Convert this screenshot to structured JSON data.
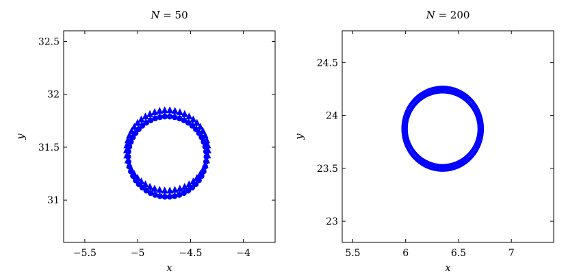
{
  "chart_data": [
    {
      "type": "scatter",
      "title": "N = 50",
      "title_var": "N",
      "title_rest": " = 50",
      "xlabel": "x",
      "ylabel": "y",
      "xlim": [
        -5.7,
        -3.7
      ],
      "ylim": [
        30.6,
        32.6
      ],
      "xticks": [
        -5.5,
        -5,
        -4.5,
        -4
      ],
      "xtick_labels": [
        "−5.5",
        "−5",
        "−4.5",
        "−4"
      ],
      "yticks": [
        31,
        31.5,
        32,
        32.5
      ],
      "ytick_labels": [
        "31",
        "31.5",
        "32",
        "32.5"
      ],
      "grid": false,
      "color": "#0000ff",
      "markers": "arrows pointing along the ring",
      "ring": {
        "center": [
          -4.72,
          31.41
        ],
        "radius_x": 0.37,
        "radius_y": 0.38
      },
      "n_points": 50
    },
    {
      "type": "scatter",
      "title": "N = 200",
      "title_var": "N",
      "title_rest": " = 200",
      "xlabel": "x",
      "ylabel": "y",
      "xlim": [
        5.4,
        7.4
      ],
      "ylim": [
        22.8,
        24.8
      ],
      "xticks": [
        5.5,
        6,
        6.5,
        7
      ],
      "xtick_labels": [
        "5.5",
        "6",
        "6.5",
        "7"
      ],
      "yticks": [
        23,
        23.5,
        24,
        24.5
      ],
      "ytick_labels": [
        "23",
        "23.5",
        "24",
        "24.5"
      ],
      "grid": false,
      "color": "#0000ff",
      "markers": "dense arrows forming a ring",
      "ring": {
        "center": [
          6.35,
          23.855
        ],
        "radius_x": 0.36,
        "radius_y": 0.37
      },
      "n_points": 200
    }
  ]
}
